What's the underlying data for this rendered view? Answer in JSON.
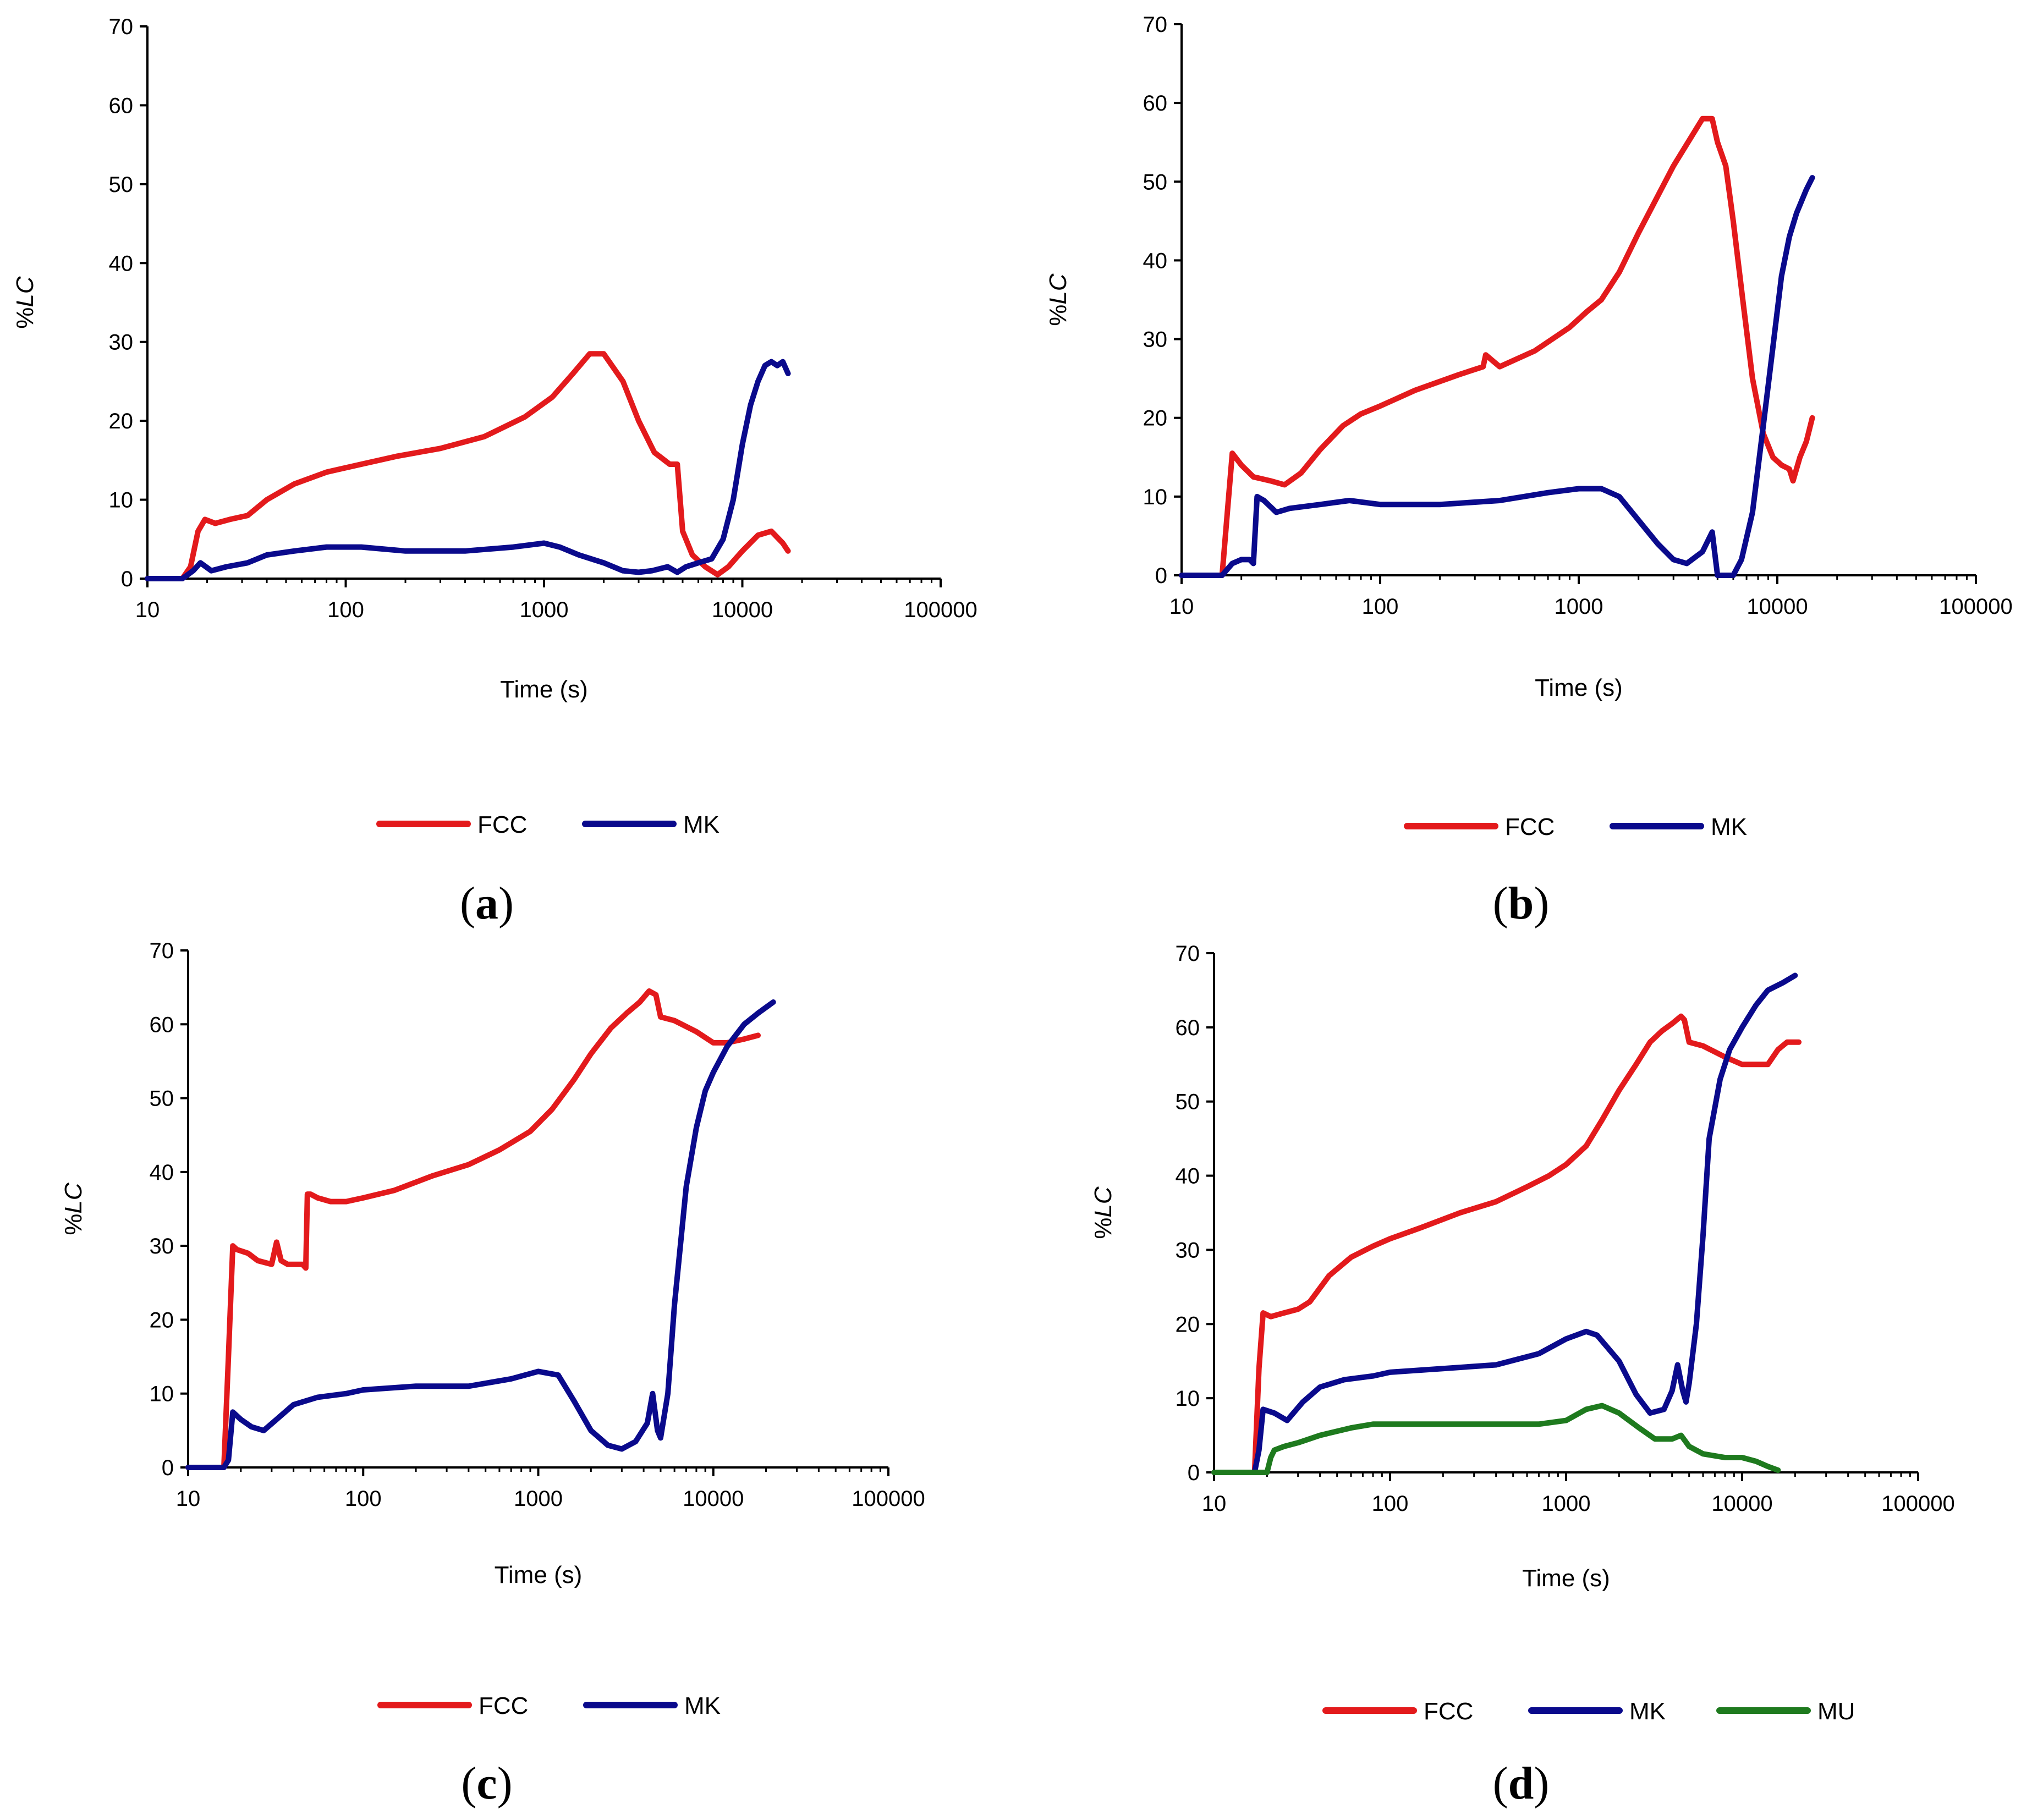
{
  "colors": {
    "FCC": "#e31a1c",
    "MK": "#0a0a8c",
    "MU": "#1e7a1e",
    "axis": "#000000"
  },
  "chart_data": [
    {
      "type": "line",
      "panel": "a",
      "ylabel": "%LC",
      "xlabel": "Time (s)",
      "xscale": "log",
      "xlim": [
        10,
        100000
      ],
      "ylim": [
        0,
        70
      ],
      "xticks": [
        "10",
        "100",
        "1000",
        "10000",
        "100000"
      ],
      "yticks": [
        "0",
        "10",
        "20",
        "30",
        "40",
        "50",
        "60",
        "70"
      ],
      "series": [
        {
          "name": "FCC",
          "x": [
            10,
            15,
            16.5,
            18,
            19.5,
            22,
            26,
            32,
            40,
            55,
            80,
            120,
            180,
            300,
            500,
            800,
            1100,
            1400,
            1700,
            2000,
            2500,
            3000,
            3600,
            4300,
            4700,
            5000,
            5600,
            6500,
            7500,
            8500,
            10000,
            12000,
            14000,
            16000,
            17000
          ],
          "y": [
            0,
            0,
            1.5,
            6,
            7.5,
            7,
            7.5,
            8,
            10,
            12,
            13.5,
            14.5,
            15.5,
            16.5,
            18,
            20.5,
            23,
            26,
            28.5,
            28.5,
            25,
            20,
            16,
            14.5,
            14.5,
            6,
            3,
            1.5,
            0.5,
            1.5,
            3.5,
            5.5,
            6,
            4.5,
            3.5
          ]
        },
        {
          "name": "MK",
          "x": [
            10,
            15,
            17,
            18.5,
            21,
            25,
            32,
            40,
            55,
            80,
            120,
            200,
            400,
            700,
            1000,
            1200,
            1500,
            2000,
            2500,
            3000,
            3500,
            4200,
            4700,
            5200,
            6000,
            7000,
            8000,
            9000,
            10000,
            11000,
            12000,
            13000,
            14000,
            15000,
            16000,
            17000
          ],
          "y": [
            0,
            0,
            1,
            2,
            1,
            1.5,
            2,
            3,
            3.5,
            4,
            4,
            3.5,
            3.5,
            4,
            4.5,
            4,
            3,
            2,
            1,
            0.8,
            1,
            1.5,
            0.8,
            1.5,
            2,
            2.5,
            5,
            10,
            17,
            22,
            25,
            27,
            27.5,
            27,
            27.5,
            26
          ]
        }
      ],
      "legend": [
        "FCC",
        "MK"
      ]
    },
    {
      "type": "line",
      "panel": "b",
      "ylabel": "%LC",
      "xlabel": "Time (s)",
      "xscale": "log",
      "xlim": [
        10,
        100000
      ],
      "ylim": [
        0,
        70
      ],
      "xticks": [
        "10",
        "100",
        "1000",
        "10000",
        "100000"
      ],
      "yticks": [
        "0",
        "10",
        "20",
        "30",
        "40",
        "50",
        "60",
        "70"
      ],
      "series": [
        {
          "name": "FCC",
          "x": [
            10,
            16,
            17,
            18,
            20,
            23,
            28,
            33,
            40,
            50,
            65,
            80,
            100,
            150,
            250,
            330,
            340,
            400,
            600,
            900,
            1100,
            1300,
            1600,
            2000,
            3000,
            4200,
            4700,
            5000,
            5500,
            6000,
            6700,
            7500,
            8500,
            9500,
            10500,
            11500,
            12000,
            13000,
            14000,
            15000
          ],
          "y": [
            0,
            0,
            8,
            15.5,
            14,
            12.5,
            12,
            11.5,
            13,
            16,
            19,
            20.5,
            21.5,
            23.5,
            25.5,
            26.5,
            28,
            26.5,
            28.5,
            31.5,
            33.5,
            35,
            38.5,
            43.5,
            52,
            58,
            58,
            55,
            52,
            45,
            35,
            25,
            18,
            15,
            14,
            13.5,
            12,
            15,
            17,
            20
          ]
        },
        {
          "name": "MK",
          "x": [
            10,
            16,
            18,
            20,
            22,
            23,
            24,
            26,
            30,
            35,
            50,
            70,
            100,
            200,
            400,
            700,
            1000,
            1300,
            1600,
            2000,
            2500,
            3000,
            3500,
            4200,
            4700,
            5000,
            5500,
            6000,
            6600,
            7500,
            8500,
            9500,
            10500,
            11500,
            12500,
            14000,
            15000
          ],
          "y": [
            0,
            0,
            1.5,
            2,
            2,
            1.5,
            10,
            9.5,
            8,
            8.5,
            9,
            9.5,
            9,
            9,
            9.5,
            10.5,
            11,
            11,
            10,
            7,
            4,
            2,
            1.5,
            3,
            5.5,
            0,
            0,
            0,
            2,
            8,
            19,
            29,
            38,
            43,
            46,
            49,
            50.5
          ]
        }
      ],
      "legend": [
        "FCC",
        "MK"
      ]
    },
    {
      "type": "line",
      "panel": "c",
      "ylabel": "%LC",
      "xlabel": "Time (s)",
      "xscale": "log",
      "xlim": [
        10,
        100000
      ],
      "ylim": [
        0,
        70
      ],
      "xticks": [
        "10",
        "100",
        "1000",
        "10000",
        "100000"
      ],
      "yticks": [
        "0",
        "10",
        "20",
        "30",
        "40",
        "50",
        "60",
        "70"
      ],
      "series": [
        {
          "name": "FCC",
          "x": [
            10,
            16,
            17,
            18,
            19,
            22,
            25,
            30,
            32,
            34,
            37,
            45,
            47,
            48,
            50,
            55,
            65,
            80,
            100,
            150,
            250,
            400,
            600,
            900,
            1200,
            1600,
            2000,
            2600,
            3200,
            3800,
            4300,
            4700,
            5000,
            6000,
            8000,
            10000,
            12000,
            15000,
            18000
          ],
          "y": [
            0,
            0,
            15,
            30,
            29.5,
            29,
            28,
            27.5,
            30.5,
            28,
            27.5,
            27.5,
            27,
            37,
            37,
            36.5,
            36,
            36,
            36.5,
            37.5,
            39.5,
            41,
            43,
            45.5,
            48.5,
            52.5,
            56,
            59.5,
            61.5,
            63,
            64.5,
            64,
            61,
            60.5,
            59,
            57.5,
            57.5,
            58,
            58.5
          ]
        },
        {
          "name": "MK",
          "x": [
            10,
            16,
            17,
            18,
            20,
            23,
            27,
            32,
            40,
            55,
            80,
            100,
            200,
            400,
            700,
            1000,
            1300,
            1600,
            2000,
            2500,
            3000,
            3600,
            4200,
            4500,
            4800,
            5000,
            5500,
            6000,
            7000,
            8000,
            9000,
            10000,
            12000,
            15000,
            18000,
            22000
          ],
          "y": [
            0,
            0,
            1,
            7.5,
            6.5,
            5.5,
            5,
            6.5,
            8.5,
            9.5,
            10,
            10.5,
            11,
            11,
            12,
            13,
            12.5,
            9,
            5,
            3,
            2.5,
            3.5,
            6,
            10,
            5,
            4,
            10,
            22,
            38,
            46,
            51,
            53.5,
            57,
            60,
            61.5,
            63
          ]
        }
      ],
      "legend": [
        "FCC",
        "MK"
      ]
    },
    {
      "type": "line",
      "panel": "d",
      "ylabel": "%LC",
      "xlabel": "Time (s)",
      "xscale": "log",
      "xlim": [
        10,
        100000
      ],
      "ylim": [
        0,
        70
      ],
      "xticks": [
        "10",
        "100",
        "1000",
        "10000",
        "100000"
      ],
      "yticks": [
        "0",
        "10",
        "20",
        "30",
        "40",
        "50",
        "60",
        "70"
      ],
      "series": [
        {
          "name": "FCC",
          "x": [
            10,
            17,
            18,
            19,
            21,
            25,
            30,
            35,
            45,
            60,
            80,
            100,
            150,
            250,
            400,
            600,
            800,
            1000,
            1300,
            1600,
            2000,
            2500,
            3000,
            3500,
            4000,
            4500,
            4700,
            5000,
            6000,
            8000,
            10000,
            12000,
            14000,
            16000,
            18000,
            21000
          ],
          "y": [
            0,
            0,
            14,
            21.5,
            21,
            21.5,
            22,
            23,
            26.5,
            29,
            30.5,
            31.5,
            33,
            35,
            36.5,
            38.5,
            40,
            41.5,
            44,
            47.5,
            51.5,
            55,
            58,
            59.5,
            60.5,
            61.5,
            61,
            58,
            57.5,
            56,
            55,
            55,
            55,
            57,
            58,
            58
          ]
        },
        {
          "name": "MK",
          "x": [
            10,
            17,
            18,
            19,
            22,
            26,
            32,
            40,
            55,
            80,
            100,
            200,
            400,
            700,
            1000,
            1300,
            1500,
            2000,
            2500,
            3000,
            3600,
            4000,
            4300,
            4600,
            4800,
            5000,
            5500,
            6000,
            6500,
            7500,
            8500,
            10000,
            12000,
            14000,
            17000,
            20000
          ],
          "y": [
            0,
            0,
            3,
            8.5,
            8,
            7,
            9.5,
            11.5,
            12.5,
            13,
            13.5,
            14,
            14.5,
            16,
            18,
            19,
            18.5,
            15,
            10.5,
            8,
            8.5,
            11,
            14.5,
            11,
            9.5,
            12,
            20,
            32,
            45,
            53,
            57,
            60,
            63,
            65,
            66,
            67
          ]
        },
        {
          "name": "MU",
          "x": [
            10,
            20,
            21,
            22,
            25,
            30,
            40,
            60,
            80,
            100,
            200,
            400,
            700,
            1000,
            1300,
            1600,
            2000,
            2600,
            3200,
            4000,
            4500,
            5000,
            6000,
            8000,
            10000,
            12000,
            14000,
            16000
          ],
          "y": [
            0,
            0,
            2,
            3,
            3.5,
            4,
            5,
            6,
            6.5,
            6.5,
            6.5,
            6.5,
            6.5,
            7,
            8.5,
            9,
            8,
            6,
            4.5,
            4.5,
            5,
            3.5,
            2.5,
            2,
            2,
            1.5,
            0.8,
            0.3
          ]
        }
      ],
      "legend": [
        "FCC",
        "MK",
        "MU"
      ]
    }
  ],
  "panel_labels": {
    "a": "(a)",
    "b": "(b)",
    "c": "(c)",
    "d": "(d)"
  },
  "panel_label_letters": {
    "a": "a",
    "b": "b",
    "c": "c",
    "d": "d"
  },
  "panel_label_parens": {
    "open": "(",
    "close": ")"
  }
}
